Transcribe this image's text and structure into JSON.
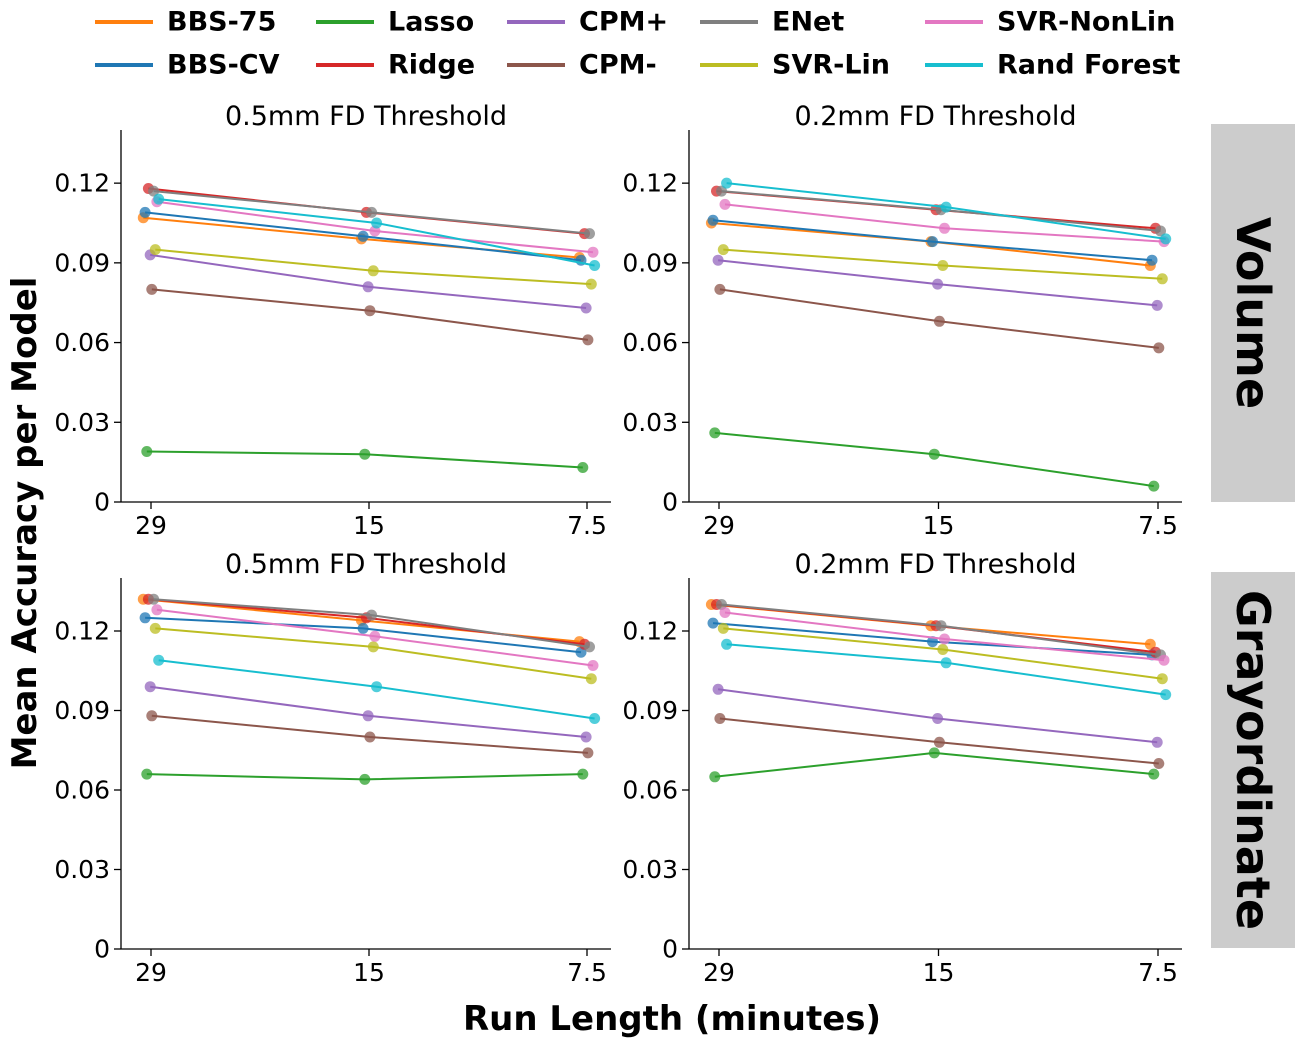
{
  "figure": {
    "ylabel": "Mean Accuracy per Model",
    "xlabel": "Run Length (minutes)",
    "row_labels": [
      "Volume",
      "Grayordinate"
    ],
    "strip_color": "#cccccc"
  },
  "legend": [
    {
      "name": "BBS-75",
      "color": "#ff7f0e"
    },
    {
      "name": "BBS-CV",
      "color": "#1f77b4"
    },
    {
      "name": "Lasso",
      "color": "#2ca02c"
    },
    {
      "name": "Ridge",
      "color": "#d62728"
    },
    {
      "name": "CPM+",
      "color": "#9467bd"
    },
    {
      "name": "CPM-",
      "color": "#8c564b"
    },
    {
      "name": "ENet",
      "color": "#7f7f7f"
    },
    {
      "name": "SVR-Lin",
      "color": "#bcbd22"
    },
    {
      "name": "SVR-NonLin",
      "color": "#e377c2"
    },
    {
      "name": "Rand Forest",
      "color": "#17becf"
    }
  ],
  "chart_data": [
    {
      "type": "line",
      "title": "0.5mm FD Threshold",
      "row": "Volume",
      "categories": [
        "29",
        "15",
        "7.5"
      ],
      "ylim": [
        0,
        0.14
      ],
      "yticks": [
        "0",
        "0.03",
        "0.06",
        "0.09",
        "0.12"
      ],
      "series": [
        {
          "name": "BBS-75",
          "values": [
            0.107,
            0.099,
            0.092
          ]
        },
        {
          "name": "BBS-CV",
          "values": [
            0.109,
            0.1,
            0.091
          ]
        },
        {
          "name": "Lasso",
          "values": [
            0.019,
            0.018,
            0.013
          ]
        },
        {
          "name": "Ridge",
          "values": [
            0.118,
            0.109,
            0.101
          ]
        },
        {
          "name": "CPM+",
          "values": [
            0.093,
            0.081,
            0.073
          ]
        },
        {
          "name": "CPM-",
          "values": [
            0.08,
            0.072,
            0.061
          ]
        },
        {
          "name": "ENet",
          "values": [
            0.117,
            0.109,
            0.101
          ]
        },
        {
          "name": "SVR-Lin",
          "values": [
            0.095,
            0.087,
            0.082
          ]
        },
        {
          "name": "SVR-NonLin",
          "values": [
            0.113,
            0.102,
            0.094
          ]
        },
        {
          "name": "Rand Forest",
          "values": [
            0.114,
            0.105,
            0.089
          ]
        }
      ]
    },
    {
      "type": "line",
      "title": "0.2mm FD Threshold",
      "row": "Volume",
      "categories": [
        "29",
        "15",
        "7.5"
      ],
      "ylim": [
        0,
        0.14
      ],
      "yticks": [
        "0",
        "0.03",
        "0.06",
        "0.09",
        "0.12"
      ],
      "series": [
        {
          "name": "BBS-75",
          "values": [
            0.105,
            0.098,
            0.089
          ]
        },
        {
          "name": "BBS-CV",
          "values": [
            0.106,
            0.098,
            0.091
          ]
        },
        {
          "name": "Lasso",
          "values": [
            0.026,
            0.018,
            0.006
          ]
        },
        {
          "name": "Ridge",
          "values": [
            0.117,
            0.11,
            0.103
          ]
        },
        {
          "name": "CPM+",
          "values": [
            0.091,
            0.082,
            0.074
          ]
        },
        {
          "name": "CPM-",
          "values": [
            0.08,
            0.068,
            0.058
          ]
        },
        {
          "name": "ENet",
          "values": [
            0.117,
            0.11,
            0.102
          ]
        },
        {
          "name": "SVR-Lin",
          "values": [
            0.095,
            0.089,
            0.084
          ]
        },
        {
          "name": "SVR-NonLin",
          "values": [
            0.112,
            0.103,
            0.098
          ]
        },
        {
          "name": "Rand Forest",
          "values": [
            0.12,
            0.111,
            0.099
          ]
        }
      ]
    },
    {
      "type": "line",
      "title": "0.5mm FD Threshold",
      "row": "Grayordinate",
      "categories": [
        "29",
        "15",
        "7.5"
      ],
      "ylim": [
        0,
        0.14
      ],
      "yticks": [
        "0",
        "0.03",
        "0.06",
        "0.09",
        "0.12"
      ],
      "series": [
        {
          "name": "BBS-75",
          "values": [
            0.132,
            0.124,
            0.116
          ]
        },
        {
          "name": "BBS-CV",
          "values": [
            0.125,
            0.121,
            0.112
          ]
        },
        {
          "name": "Lasso",
          "values": [
            0.066,
            0.064,
            0.066
          ]
        },
        {
          "name": "Ridge",
          "values": [
            0.132,
            0.125,
            0.115
          ]
        },
        {
          "name": "CPM+",
          "values": [
            0.099,
            0.088,
            0.08
          ]
        },
        {
          "name": "CPM-",
          "values": [
            0.088,
            0.08,
            0.074
          ]
        },
        {
          "name": "ENet",
          "values": [
            0.132,
            0.126,
            0.114
          ]
        },
        {
          "name": "SVR-Lin",
          "values": [
            0.121,
            0.114,
            0.102
          ]
        },
        {
          "name": "SVR-NonLin",
          "values": [
            0.128,
            0.118,
            0.107
          ]
        },
        {
          "name": "Rand Forest",
          "values": [
            0.109,
            0.099,
            0.087
          ]
        }
      ]
    },
    {
      "type": "line",
      "title": "0.2mm FD Threshold",
      "row": "Grayordinate",
      "categories": [
        "29",
        "15",
        "7.5"
      ],
      "ylim": [
        0,
        0.14
      ],
      "yticks": [
        "0",
        "0.03",
        "0.06",
        "0.09",
        "0.12"
      ],
      "series": [
        {
          "name": "BBS-75",
          "values": [
            0.13,
            0.122,
            0.115
          ]
        },
        {
          "name": "BBS-CV",
          "values": [
            0.123,
            0.116,
            0.111
          ]
        },
        {
          "name": "Lasso",
          "values": [
            0.065,
            0.074,
            0.066
          ]
        },
        {
          "name": "Ridge",
          "values": [
            0.13,
            0.122,
            0.112
          ]
        },
        {
          "name": "CPM+",
          "values": [
            0.098,
            0.087,
            0.078
          ]
        },
        {
          "name": "CPM-",
          "values": [
            0.087,
            0.078,
            0.07
          ]
        },
        {
          "name": "ENet",
          "values": [
            0.13,
            0.122,
            0.111
          ]
        },
        {
          "name": "SVR-Lin",
          "values": [
            0.121,
            0.113,
            0.102
          ]
        },
        {
          "name": "SVR-NonLin",
          "values": [
            0.127,
            0.117,
            0.109
          ]
        },
        {
          "name": "Rand Forest",
          "values": [
            0.115,
            0.108,
            0.096
          ]
        }
      ]
    }
  ]
}
